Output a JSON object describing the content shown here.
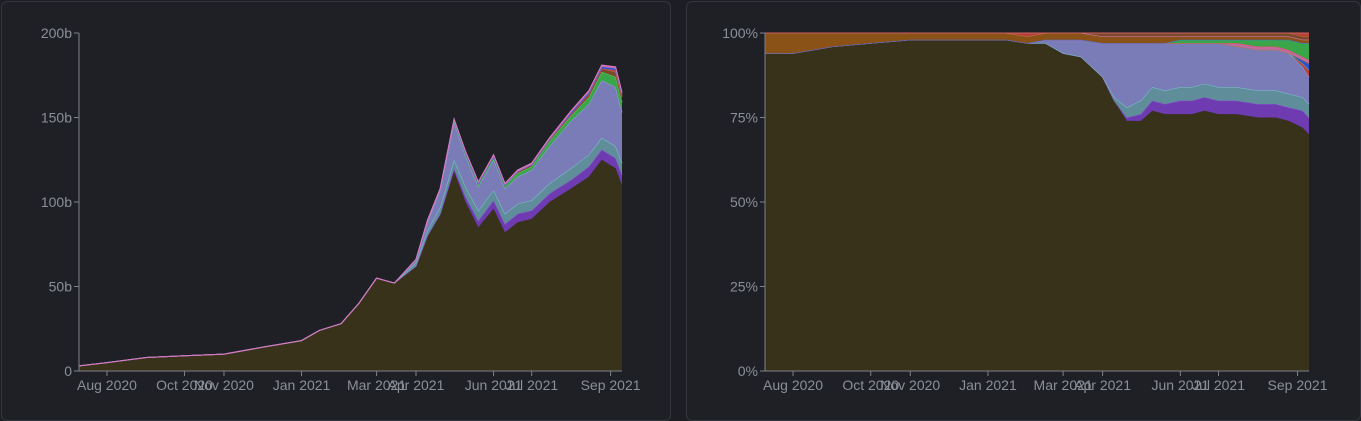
{
  "colors": {
    "background": "#1e2026",
    "base_area": "#38321a",
    "purple": "#6e3bb0",
    "lavender": "#7a7cb8",
    "teal": "#5f8e9a",
    "green": "#3aa64a",
    "brown": "#7a4a2a",
    "red": "#b8403a",
    "orange": "#8a5216",
    "blue": "#2e4fd0",
    "pink": "#c06aa0"
  },
  "chart_data": [
    {
      "type": "area",
      "stacked": true,
      "x_tick_labels": [
        "Aug 2020",
        "Oct 2020",
        "Nov 2020",
        "Jan 2021",
        "Mar 2021",
        "Apr 2021",
        "Jun 2021",
        "Jul 2021",
        "Sep 2021"
      ],
      "y_tick_labels": [
        "0",
        "50b",
        "100b",
        "150b",
        "200b"
      ],
      "ylim": [
        0,
        200
      ],
      "grid": false,
      "x": [
        "2020-07-10",
        "2020-08-01",
        "2020-09-01",
        "2020-10-01",
        "2020-11-01",
        "2020-12-01",
        "2021-01-01",
        "2021-01-15",
        "2021-02-01",
        "2021-02-15",
        "2021-03-01",
        "2021-03-15",
        "2021-04-01",
        "2021-04-10",
        "2021-04-20",
        "2021-05-01",
        "2021-05-10",
        "2021-05-20",
        "2021-06-01",
        "2021-06-10",
        "2021-06-20",
        "2021-07-01",
        "2021-07-15",
        "2021-08-01",
        "2021-08-15",
        "2021-08-25",
        "2021-09-05",
        "2021-09-10"
      ],
      "series": [
        {
          "values": [
            3,
            5,
            8,
            9,
            10,
            14,
            18,
            24,
            28,
            40,
            55,
            52,
            62,
            80,
            92,
            118,
            100,
            85,
            96,
            82,
            88,
            90,
            100,
            108,
            115,
            125,
            120,
            110
          ]
        },
        {
          "values": [
            0,
            0,
            0,
            0,
            0,
            0,
            0,
            0,
            0,
            0,
            0,
            0,
            0,
            0,
            1,
            2,
            3,
            4,
            5,
            5,
            5,
            5,
            5,
            5,
            6,
            6,
            6,
            6
          ]
        },
        {
          "values": [
            0,
            0,
            0,
            0,
            0,
            0,
            0,
            0,
            0,
            0,
            0,
            0,
            2,
            3,
            4,
            5,
            6,
            6,
            6,
            6,
            6,
            6,
            6,
            7,
            7,
            7,
            7,
            7
          ]
        },
        {
          "values": [
            0,
            0,
            0,
            0,
            0,
            0,
            0,
            0,
            0,
            0,
            0,
            0,
            2,
            5,
            10,
            22,
            18,
            14,
            18,
            15,
            16,
            18,
            22,
            28,
            30,
            34,
            35,
            30
          ]
        },
        {
          "values": [
            0,
            0,
            0,
            0,
            0,
            0,
            0,
            0,
            0,
            0,
            0,
            0,
            0,
            1,
            1,
            2,
            2,
            2,
            2,
            2,
            2,
            2,
            3,
            3,
            4,
            5,
            6,
            6
          ]
        },
        {
          "values": [
            0,
            0,
            0,
            0,
            0,
            0,
            0,
            0,
            0,
            0,
            0,
            0,
            0,
            0,
            0,
            0,
            0,
            0,
            0,
            0,
            1,
            1,
            1,
            1,
            2,
            2,
            3,
            3
          ]
        },
        {
          "values": [
            0,
            0,
            0,
            0,
            0,
            0,
            0,
            0,
            0,
            0,
            0,
            0,
            0,
            0,
            0,
            0,
            0,
            0,
            0,
            0,
            0,
            0,
            0,
            0,
            0,
            0,
            1,
            1
          ]
        },
        {
          "values": [
            0,
            0,
            0,
            0,
            0,
            0,
            0,
            0,
            0,
            0,
            0,
            0,
            0,
            0,
            0,
            0,
            0,
            0,
            0,
            0,
            0,
            0,
            0,
            1,
            1,
            1,
            1,
            1
          ]
        },
        {
          "values": [
            0,
            0,
            0,
            0,
            0,
            0,
            0,
            0,
            0,
            0,
            0,
            0,
            0,
            0,
            0,
            0,
            1,
            1,
            1,
            1,
            1,
            1,
            1,
            1,
            1,
            1,
            1,
            1
          ]
        }
      ]
    },
    {
      "type": "area",
      "stacked": true,
      "normalized": true,
      "x_tick_labels": [
        "Aug 2020",
        "Oct 2020",
        "Nov 2020",
        "Jan 2021",
        "Mar 2021",
        "Apr 2021",
        "Jun 2021",
        "Jul 2021",
        "Sep 2021"
      ],
      "y_tick_labels": [
        "0%",
        "25%",
        "50%",
        "75%",
        "100%"
      ],
      "ylim": [
        0,
        100
      ],
      "grid": false,
      "x": [
        "2020-07-10",
        "2020-08-01",
        "2020-09-01",
        "2020-10-01",
        "2020-11-01",
        "2020-12-01",
        "2021-01-01",
        "2021-01-15",
        "2021-02-01",
        "2021-02-15",
        "2021-03-01",
        "2021-03-15",
        "2021-04-01",
        "2021-04-10",
        "2021-04-20",
        "2021-05-01",
        "2021-05-10",
        "2021-05-20",
        "2021-06-01",
        "2021-06-10",
        "2021-06-20",
        "2021-07-01",
        "2021-07-15",
        "2021-08-01",
        "2021-08-15",
        "2021-08-25",
        "2021-09-05",
        "2021-09-10"
      ],
      "series": [
        {
          "values": [
            94,
            94,
            96,
            97,
            98,
            98,
            98,
            98,
            97,
            97,
            94,
            93,
            87,
            80,
            74,
            74,
            77,
            76,
            76,
            76,
            77,
            76,
            76,
            75,
            75,
            74,
            72,
            70
          ]
        },
        {
          "values": [
            0,
            0,
            0,
            0,
            0,
            0,
            0,
            0,
            0,
            0,
            0,
            0,
            0,
            0,
            1,
            2,
            3,
            3,
            4,
            4,
            4,
            4,
            4,
            4,
            4,
            4,
            5,
            5
          ]
        },
        {
          "values": [
            0,
            0,
            0,
            0,
            0,
            0,
            0,
            0,
            0,
            0,
            0,
            0,
            0,
            1,
            3,
            4,
            4,
            4,
            4,
            4,
            4,
            4,
            4,
            4,
            4,
            4,
            4,
            4
          ]
        },
        {
          "values": [
            0,
            0,
            0,
            0,
            0,
            0,
            0,
            0,
            0,
            1,
            4,
            5,
            10,
            16,
            19,
            17,
            13,
            14,
            13,
            13,
            12,
            13,
            12,
            12,
            12,
            12,
            9,
            8
          ]
        },
        {
          "values": [
            0,
            0,
            0,
            0,
            0,
            0,
            0,
            0,
            0,
            0,
            0,
            0,
            0,
            0,
            0,
            0,
            0,
            0,
            0,
            0,
            0,
            0,
            0,
            0,
            0,
            0,
            1,
            2
          ]
        },
        {
          "values": [
            0,
            0,
            0,
            0,
            0,
            0,
            0,
            0,
            0,
            0,
            0,
            0,
            0,
            0,
            0,
            0,
            0,
            0,
            0,
            0,
            0,
            0,
            0,
            0,
            0,
            0,
            1,
            2
          ]
        },
        {
          "values": [
            0,
            0,
            0,
            0,
            0,
            0,
            0,
            0,
            0,
            0,
            0,
            0,
            0,
            0,
            0,
            0,
            0,
            0,
            0,
            0,
            0,
            0,
            1,
            1,
            1,
            1,
            1,
            1
          ]
        },
        {
          "values": [
            0,
            0,
            0,
            0,
            0,
            0,
            0,
            0,
            0,
            0,
            0,
            0,
            0,
            0,
            0,
            0,
            0,
            0,
            1,
            1,
            1,
            1,
            1,
            2,
            2,
            3,
            4,
            5
          ]
        },
        {
          "values": [
            6,
            6,
            4,
            3,
            2,
            2,
            2,
            2,
            2,
            2,
            2,
            2,
            2,
            2,
            2,
            2,
            2,
            2,
            1,
            1,
            1,
            1,
            1,
            1,
            1,
            1,
            1,
            1
          ]
        },
        {
          "values": [
            0,
            0,
            0,
            0,
            0,
            0,
            0,
            0,
            0,
            0,
            0,
            0,
            1,
            1,
            1,
            1,
            1,
            1,
            1,
            1,
            1,
            1,
            1,
            1,
            1,
            1,
            1,
            1
          ]
        },
        {
          "values": [
            0,
            0,
            0,
            0,
            0,
            0,
            0,
            0,
            1,
            0,
            0,
            0,
            0,
            0,
            0,
            0,
            0,
            0,
            0,
            0,
            0,
            0,
            0,
            0,
            0,
            0,
            1,
            1
          ]
        }
      ]
    }
  ]
}
